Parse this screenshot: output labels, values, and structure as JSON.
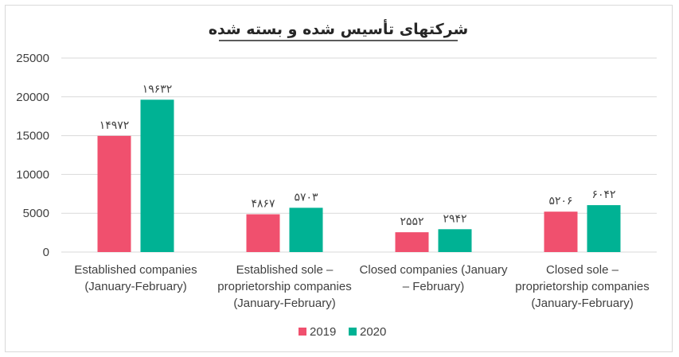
{
  "chart_data": {
    "type": "bar",
    "title": "شرکتهای تأسیس شده و بسته شده",
    "categories": [
      [
        "Established companies",
        "(January-February)"
      ],
      [
        "Established sole –",
        "proprietorship companies",
        "(January-February)"
      ],
      [
        "Closed companies (January",
        "– February)"
      ],
      [
        "Closed sole –",
        "proprietorship companies",
        "(January-February)"
      ]
    ],
    "series": [
      {
        "name": "2019",
        "color": "#f0506e",
        "values": [
          14972,
          4867,
          2552,
          5206
        ],
        "labels": [
          "۱۴۹۷۲",
          "۴۸۶۷",
          "۲۵۵۲",
          "۵۲۰۶"
        ]
      },
      {
        "name": "2020",
        "color": "#00b294",
        "values": [
          19632,
          5703,
          2942,
          6042
        ],
        "labels": [
          "۱۹۶۳۲",
          "۵۷۰۳",
          "۲۹۴۲",
          "۶۰۴۲"
        ]
      }
    ],
    "yticks": [
      "0",
      "5000",
      "10000",
      "15000",
      "20000",
      "25000"
    ],
    "ylim": [
      0,
      25000
    ],
    "grid": true,
    "legend": "bottom"
  }
}
